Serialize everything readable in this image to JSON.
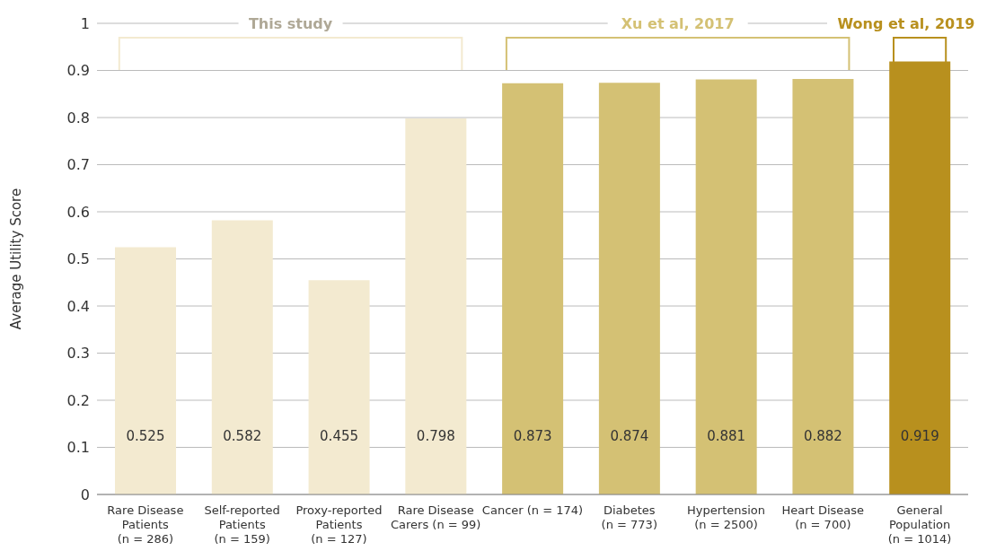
{
  "chart_data": {
    "type": "bar",
    "ylabel": "Average Utility Score",
    "categories": [
      "Rare Disease\nPatients\n(n = 286)",
      "Self-reported\nPatients\n(n = 159)",
      "Proxy-reported\nPatients\n(n = 127)",
      "Rare Disease\nCarers (n = 99)",
      "Cancer (n = 174)",
      "Diabetes\n(n = 773)",
      "Hypertension\n(n = 2500)",
      "Heart Disease\n(n = 700)",
      "General\nPopulation\n(n = 1014)"
    ],
    "values": [
      0.525,
      0.582,
      0.455,
      0.798,
      0.873,
      0.874,
      0.881,
      0.882,
      0.919
    ],
    "colors": [
      "#f3ead0",
      "#f3ead0",
      "#f3ead0",
      "#f3ead0",
      "#d4c174",
      "#d4c174",
      "#d4c174",
      "#d4c174",
      "#b8901e"
    ],
    "ylim": [
      0,
      1
    ],
    "yticks": [
      0,
      0.1,
      0.2,
      0.3,
      0.4,
      0.5,
      0.6,
      0.7,
      0.8,
      0.9,
      1
    ],
    "grid": "y",
    "data_labels": true,
    "annotations": [
      "This study",
      "Xu et al, 2017",
      "Wong et al, 2019"
    ]
  }
}
